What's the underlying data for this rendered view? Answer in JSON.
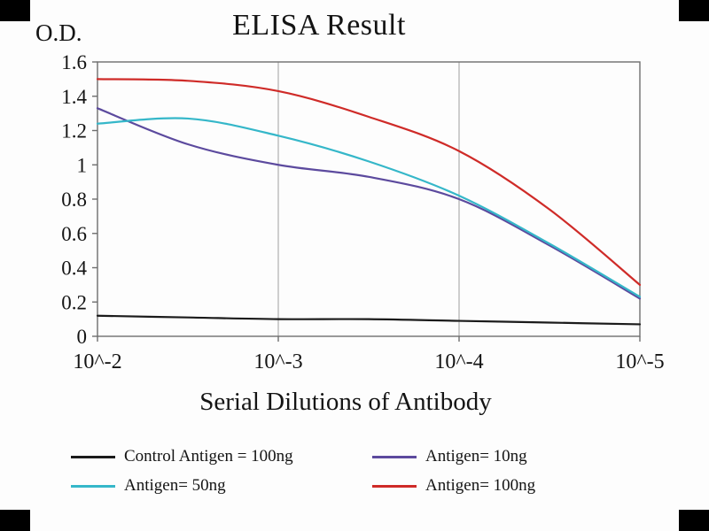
{
  "chart_data": {
    "type": "line",
    "title": "ELISA Result",
    "ylabel": "O.D.",
    "xlabel": "Serial Dilutions of Antibody",
    "x_ticklabels": [
      "10^-2",
      "10^-3",
      "10^-4",
      "10^-5"
    ],
    "y_ticks": [
      0,
      0.2,
      0.4,
      0.6,
      0.8,
      1,
      1.2,
      1.4,
      1.6
    ],
    "y_ticklabels": [
      "0",
      "0.2",
      "0.4",
      "0.6",
      "0.8",
      "1",
      "1.2",
      "1.4",
      "1.6"
    ],
    "ylim": [
      0,
      1.6
    ],
    "grid": "vertical-only",
    "legend_position": "bottom",
    "colors": {
      "grid": "#a0a0a0",
      "axis": "#6e6e6e",
      "text": "#141414",
      "background": "#fdfdfd"
    },
    "series": [
      {
        "name": "Control Antigen = 100ng",
        "color": "#1b1b1b",
        "x": [
          0,
          0.5,
          1,
          1.5,
          2,
          2.5,
          3
        ],
        "values": [
          0.12,
          0.11,
          0.1,
          0.1,
          0.09,
          0.08,
          0.07
        ]
      },
      {
        "name": "Antigen= 10ng",
        "color": "#5c4a9e",
        "x": [
          0,
          0.5,
          1,
          1.5,
          2,
          2.5,
          3
        ],
        "values": [
          1.33,
          1.12,
          1.0,
          0.93,
          0.8,
          0.53,
          0.22
        ]
      },
      {
        "name": "Antigen= 50ng",
        "color": "#35b7c9",
        "x": [
          0,
          0.5,
          1,
          1.5,
          2,
          2.5,
          3
        ],
        "values": [
          1.24,
          1.27,
          1.17,
          1.02,
          0.82,
          0.54,
          0.23
        ]
      },
      {
        "name": "Antigen= 100ng",
        "color": "#cf2b28",
        "x": [
          0,
          0.5,
          1,
          1.5,
          2,
          2.5,
          3
        ],
        "values": [
          1.5,
          1.49,
          1.43,
          1.28,
          1.08,
          0.74,
          0.3
        ]
      }
    ]
  }
}
